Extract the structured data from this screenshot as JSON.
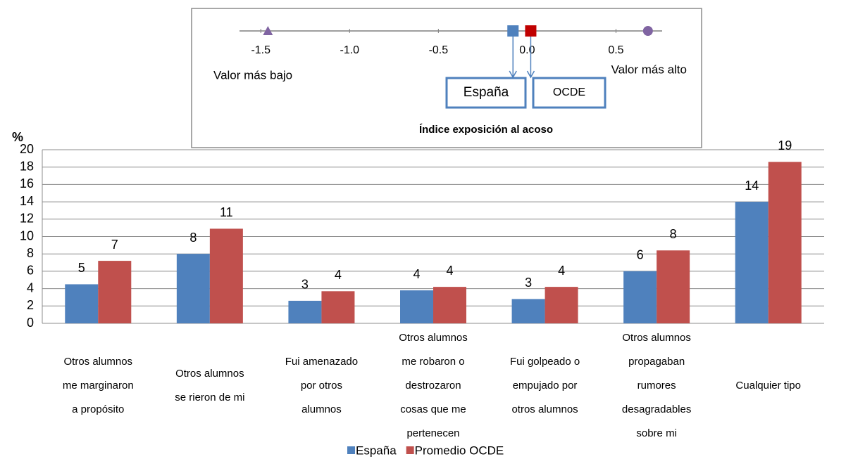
{
  "chart_data": [
    {
      "type": "scale",
      "title": "Índice exposición al acoso",
      "xlim": [
        -1.62,
        0.76
      ],
      "xticks": [
        -1.5,
        {
          "value": -1,
          "label": "-1.0"
        },
        -0.5,
        {
          "value": 0,
          "label": "0.0"
        },
        0.5
      ],
      "points": [
        {
          "name": "Valor más bajo",
          "value": -1.46,
          "color": "#8064a2",
          "marker": "triangle"
        },
        {
          "name": "España",
          "value": -0.08,
          "color": "#4f81bd",
          "marker": "square",
          "boxed": true
        },
        {
          "name": "OCDE",
          "value": 0.02,
          "color": "#c00000",
          "marker": "square",
          "boxed": true
        },
        {
          "name": "Valor más alto",
          "value": 0.68,
          "color": "#8064a2",
          "marker": "circle"
        }
      ]
    },
    {
      "type": "bar",
      "y_label": "%",
      "categories": [
        "Otros alumnos\nme marginaron\na propósito",
        "Otros alumnos\nse rieron de mi",
        "Fui amenazado\npor otros\nalumnos",
        "Otros alumnos\nme robaron o\ndestrozaron\ncosas que me\npertenecen",
        "Fui golpeado o\nempujado por\notros alumnos",
        "Otros alumnos\npropagaban\nrumores\ndesagradables\nsobre mi",
        "Cualquier tipo"
      ],
      "series": [
        {
          "name": "España",
          "color": "#4f81bd",
          "values": [
            4.5,
            8,
            2.6,
            3.8,
            2.8,
            6,
            14
          ],
          "value_labels": [
            "5",
            "8",
            "3",
            "4",
            "3",
            "6",
            "14"
          ]
        },
        {
          "name": "Promedio OCDE",
          "color": "#c0504d",
          "values": [
            7.2,
            10.9,
            3.7,
            4.2,
            4.2,
            8.4,
            18.6
          ],
          "value_labels": [
            "7",
            "11",
            "4",
            "4",
            "4",
            "8",
            "19"
          ]
        }
      ],
      "ylim": [
        0,
        20
      ],
      "yticks": [
        0,
        2,
        4,
        6,
        8,
        10,
        12,
        14,
        16,
        18,
        20
      ],
      "grid": true,
      "legend": "bottom"
    }
  ]
}
